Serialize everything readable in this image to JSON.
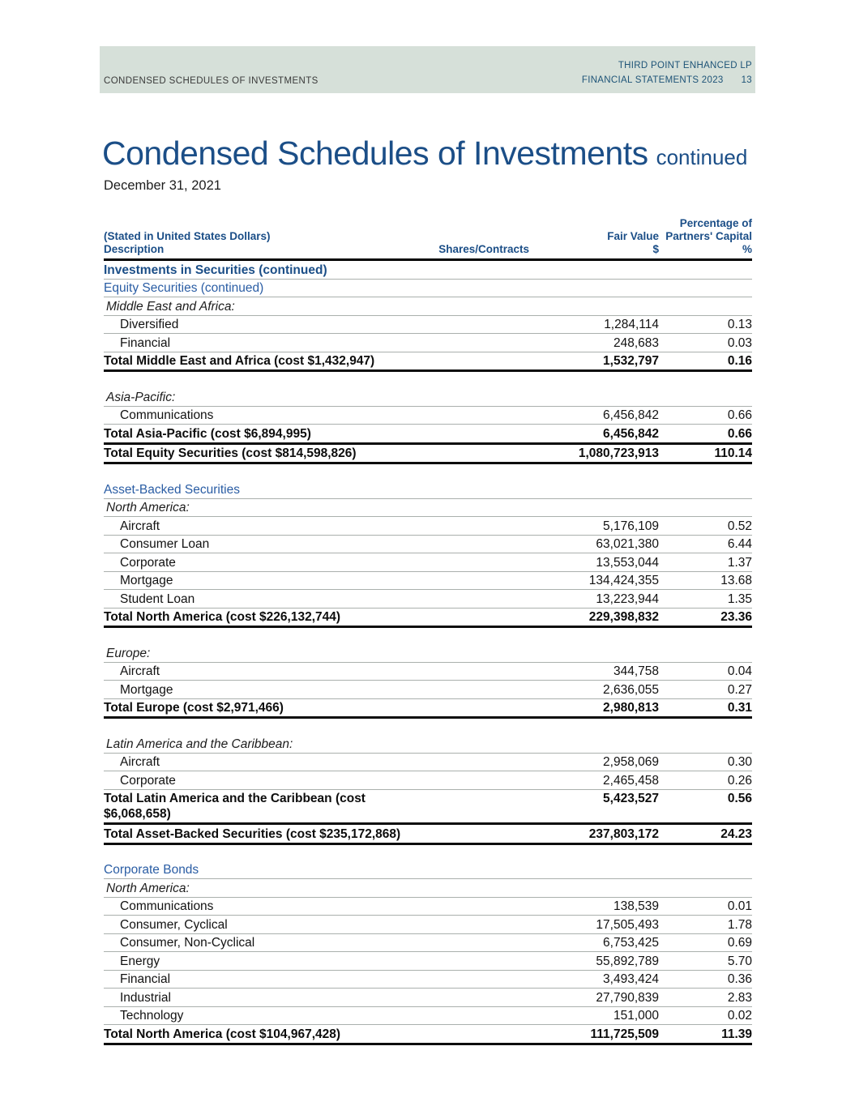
{
  "page": {
    "header_band": {
      "left_title": "CONDENSED SCHEDULES OF INVESTMENTS",
      "right_line1": "THIRD POINT ENHANCED LP",
      "right_line2": "FINANCIAL STATEMENTS 2023",
      "page_number": "13",
      "band_color": "#d6e0d9",
      "band_text_color": "#1d5377"
    },
    "title": "Condensed Schedules of Investments",
    "title_suffix": "continued",
    "date": "December 31, 2021",
    "accent_blue_dark": "#1b4e87",
    "accent_blue": "#2a5da4"
  },
  "table": {
    "columns": {
      "stated_note": "(Stated in United States Dollars)",
      "description": "Description",
      "shares_contracts": "Shares/Contracts",
      "fair_value": "Fair Value",
      "fair_value_unit": "$",
      "percentage_line1": "Percentage of",
      "percentage_line2": "Partners' Capital",
      "percentage_unit": "%"
    },
    "rows": [
      {
        "type": "group-bold",
        "label": "Investments in Securities (continued)",
        "shares": "",
        "fair_value": "",
        "pct": ""
      },
      {
        "type": "group",
        "label": "Equity Securities (continued)",
        "shares": "",
        "fair_value": "",
        "pct": ""
      },
      {
        "type": "region",
        "label": "Middle East and Africa:",
        "shares": "",
        "fair_value": "",
        "pct": ""
      },
      {
        "type": "data",
        "label": "Diversified",
        "shares": "",
        "fair_value": "1,284,114",
        "pct": "0.13"
      },
      {
        "type": "data",
        "label": "Financial",
        "shares": "",
        "fair_value": "248,683",
        "pct": "0.03"
      },
      {
        "type": "total",
        "label": "Total Middle East and Africa (cost $1,432,947)",
        "shares": "",
        "fair_value": "1,532,797",
        "pct": "0.16"
      },
      {
        "type": "gap"
      },
      {
        "type": "region",
        "label": "Asia-Pacific:",
        "shares": "",
        "fair_value": "",
        "pct": ""
      },
      {
        "type": "data",
        "label": "Communications",
        "shares": "",
        "fair_value": "6,456,842",
        "pct": "0.66"
      },
      {
        "type": "total",
        "label": "Total Asia-Pacific (cost $6,894,995)",
        "shares": "",
        "fair_value": "6,456,842",
        "pct": "0.66"
      },
      {
        "type": "total",
        "label": "Total Equity Securities (cost $814,598,826)",
        "shares": "",
        "fair_value": "1,080,723,913",
        "pct": "110.14"
      },
      {
        "type": "gap"
      },
      {
        "type": "group",
        "label": "Asset-Backed Securities",
        "shares": "",
        "fair_value": "",
        "pct": ""
      },
      {
        "type": "region",
        "label": "North America:",
        "shares": "",
        "fair_value": "",
        "pct": ""
      },
      {
        "type": "data",
        "label": "Aircraft",
        "shares": "",
        "fair_value": "5,176,109",
        "pct": "0.52"
      },
      {
        "type": "data",
        "label": "Consumer Loan",
        "shares": "",
        "fair_value": "63,021,380",
        "pct": "6.44"
      },
      {
        "type": "data",
        "label": "Corporate",
        "shares": "",
        "fair_value": "13,553,044",
        "pct": "1.37"
      },
      {
        "type": "data",
        "label": "Mortgage",
        "shares": "",
        "fair_value": "134,424,355",
        "pct": "13.68"
      },
      {
        "type": "data",
        "label": "Student Loan",
        "shares": "",
        "fair_value": "13,223,944",
        "pct": "1.35"
      },
      {
        "type": "total",
        "label": "Total North America (cost $226,132,744)",
        "shares": "",
        "fair_value": "229,398,832",
        "pct": "23.36"
      },
      {
        "type": "gap"
      },
      {
        "type": "region",
        "label": "Europe:",
        "shares": "",
        "fair_value": "",
        "pct": ""
      },
      {
        "type": "data",
        "label": "Aircraft",
        "shares": "",
        "fair_value": "344,758",
        "pct": "0.04"
      },
      {
        "type": "data",
        "label": "Mortgage",
        "shares": "",
        "fair_value": "2,636,055",
        "pct": "0.27"
      },
      {
        "type": "total",
        "label": "Total Europe (cost $2,971,466)",
        "shares": "",
        "fair_value": "2,980,813",
        "pct": "0.31"
      },
      {
        "type": "gap"
      },
      {
        "type": "region",
        "label": "Latin America and the Caribbean:",
        "shares": "",
        "fair_value": "",
        "pct": ""
      },
      {
        "type": "data",
        "label": "Aircraft",
        "shares": "",
        "fair_value": "2,958,069",
        "pct": "0.30"
      },
      {
        "type": "data",
        "label": "Corporate",
        "shares": "",
        "fair_value": "2,465,458",
        "pct": "0.26"
      },
      {
        "type": "total",
        "label": "Total Latin America and the Caribbean (cost $6,068,658)",
        "shares": "",
        "fair_value": "5,423,527",
        "pct": "0.56"
      },
      {
        "type": "total",
        "label": "Total Asset-Backed Securities (cost $235,172,868)",
        "shares": "",
        "fair_value": "237,803,172",
        "pct": "24.23"
      },
      {
        "type": "gap"
      },
      {
        "type": "group",
        "label": "Corporate Bonds",
        "shares": "",
        "fair_value": "",
        "pct": ""
      },
      {
        "type": "region",
        "label": "North America:",
        "shares": "",
        "fair_value": "",
        "pct": ""
      },
      {
        "type": "data",
        "label": "Communications",
        "shares": "",
        "fair_value": "138,539",
        "pct": "0.01"
      },
      {
        "type": "data",
        "label": "Consumer, Cyclical",
        "shares": "",
        "fair_value": "17,505,493",
        "pct": "1.78"
      },
      {
        "type": "data",
        "label": "Consumer, Non-Cyclical",
        "shares": "",
        "fair_value": "6,753,425",
        "pct": "0.69"
      },
      {
        "type": "data",
        "label": "Energy",
        "shares": "",
        "fair_value": "55,892,789",
        "pct": "5.70"
      },
      {
        "type": "data",
        "label": "Financial",
        "shares": "",
        "fair_value": "3,493,424",
        "pct": "0.36"
      },
      {
        "type": "data",
        "label": "Industrial",
        "shares": "",
        "fair_value": "27,790,839",
        "pct": "2.83"
      },
      {
        "type": "data",
        "label": "Technology",
        "shares": "",
        "fair_value": "151,000",
        "pct": "0.02"
      },
      {
        "type": "total",
        "label": "Total North America (cost $104,967,428)",
        "shares": "",
        "fair_value": "111,725,509",
        "pct": "11.39"
      }
    ]
  }
}
